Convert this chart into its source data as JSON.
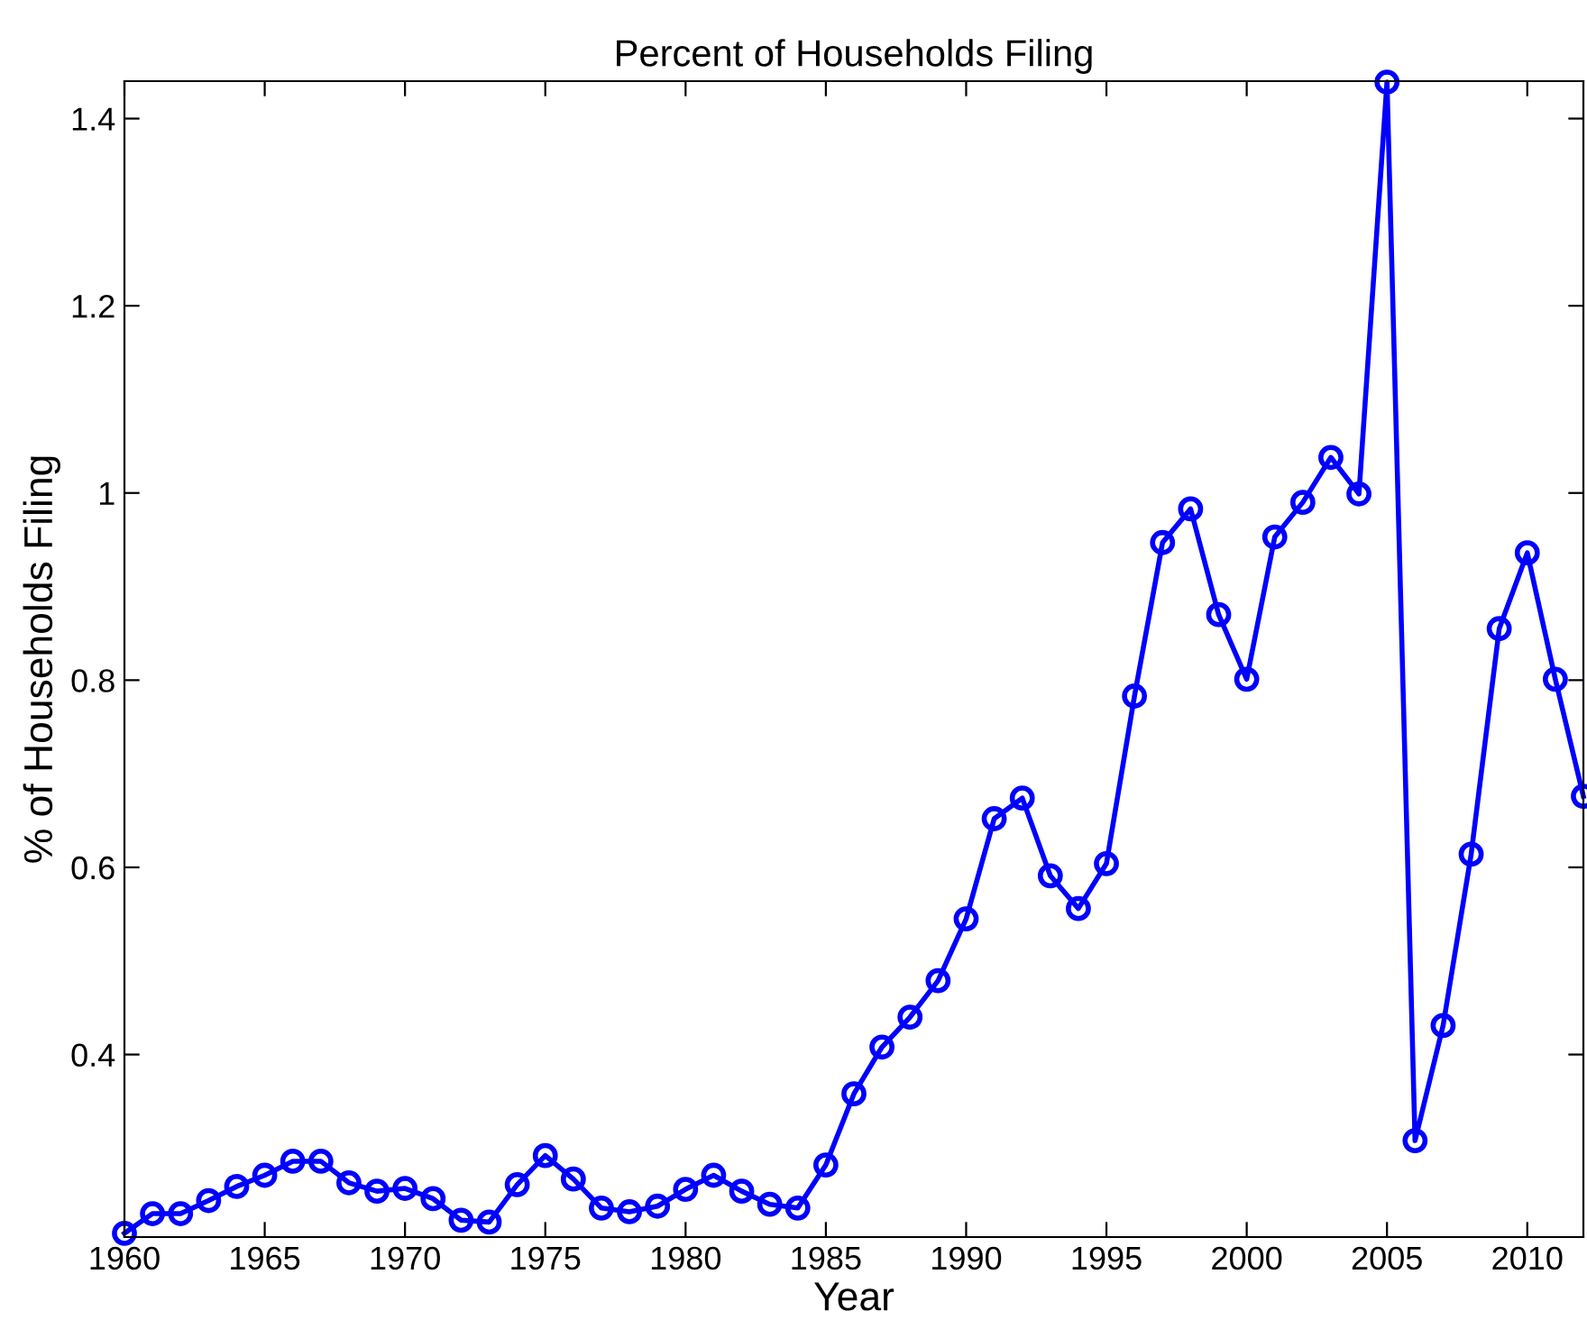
{
  "chart_data": {
    "type": "line",
    "title": "Percent of Households Filing",
    "xlabel": "Year",
    "ylabel": "% of Households Filing",
    "x": [
      1960,
      1961,
      1962,
      1963,
      1964,
      1965,
      1966,
      1967,
      1968,
      1969,
      1970,
      1971,
      1972,
      1973,
      1974,
      1975,
      1976,
      1977,
      1978,
      1979,
      1980,
      1981,
      1982,
      1983,
      1984,
      1985,
      1986,
      1987,
      1988,
      1989,
      1990,
      1991,
      1992,
      1993,
      1994,
      1995,
      1996,
      1997,
      1998,
      1999,
      2000,
      2001,
      2002,
      2003,
      2004,
      2005,
      2006,
      2007,
      2008,
      2009,
      2010,
      2011,
      2012
    ],
    "series": [
      {
        "color": "#0000ff",
        "values": [
          0.209,
          0.23,
          0.23,
          0.244,
          0.259,
          0.271,
          0.286,
          0.286,
          0.263,
          0.254,
          0.257,
          0.246,
          0.223,
          0.221,
          0.261,
          0.292,
          0.267,
          0.236,
          0.232,
          0.238,
          0.256,
          0.271,
          0.254,
          0.24,
          0.236,
          0.282,
          0.358,
          0.408,
          0.44,
          0.479,
          0.545,
          0.652,
          0.674,
          0.591,
          0.556,
          0.604,
          0.783,
          0.947,
          0.983,
          0.87,
          0.801,
          0.953,
          0.99,
          1.038,
          0.999,
          1.439,
          0.308,
          0.431,
          0.614,
          0.855,
          0.936,
          0.801,
          0.676
        ]
      }
    ],
    "xlim": [
      1960,
      2012
    ],
    "ylim": [
      0.205,
      1.44
    ],
    "xticks": [
      1960,
      1965,
      1970,
      1975,
      1980,
      1985,
      1990,
      1995,
      2000,
      2005,
      2010
    ],
    "yticks": [
      0.4,
      0.6,
      0.8,
      1,
      1.2,
      1.4
    ],
    "marker": "circle",
    "line_style": "solid"
  }
}
